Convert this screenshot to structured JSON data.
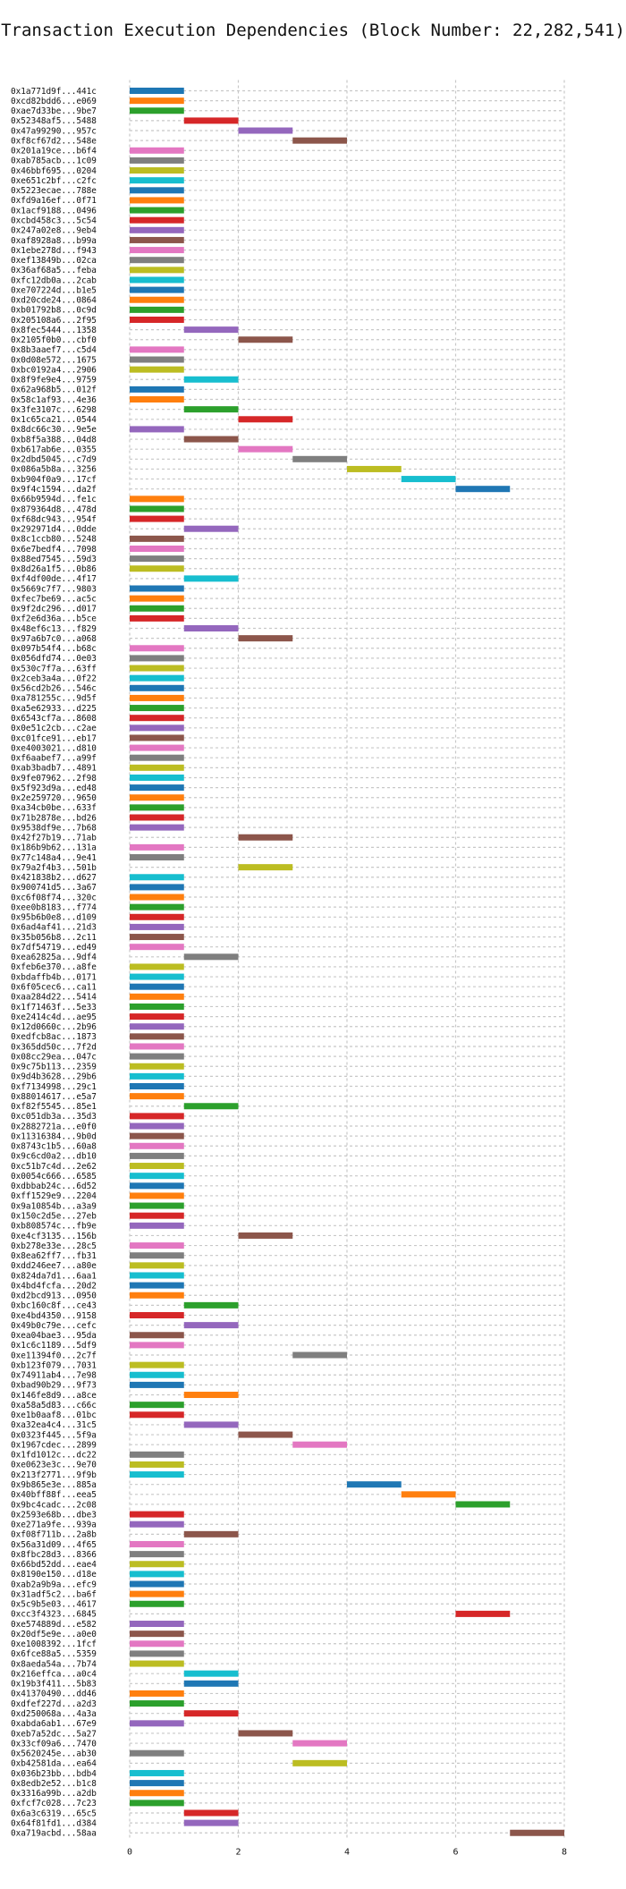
{
  "chart_data": {
    "type": "gantt",
    "title": "Transaction Execution Dependencies (Block Number: 22,282,541)",
    "xlabel": "",
    "ylabel": "",
    "xlim": [
      0,
      8
    ],
    "xticks": [
      0,
      2,
      4,
      6,
      8
    ],
    "grid": true,
    "palette": [
      "#1f77b4",
      "#ff7f0e",
      "#2ca02c",
      "#d62728",
      "#9467bd",
      "#8c564b",
      "#e377c2",
      "#7f7f7f",
      "#bcbd22",
      "#17becf"
    ],
    "tasks": [
      [
        "0x1a771d9f...441c",
        0,
        1
      ],
      [
        "0xcd82bdd6...e069",
        0,
        1
      ],
      [
        "0xae7d33be...9be7",
        0,
        1
      ],
      [
        "0x52348af5...5488",
        1,
        2
      ],
      [
        "0x47a99290...957c",
        2,
        3
      ],
      [
        "0xf8cf67d2...548e",
        3,
        4
      ],
      [
        "0x201a19ce...b6f4",
        0,
        1
      ],
      [
        "0xab785acb...1c09",
        0,
        1
      ],
      [
        "0x46bbf695...0204",
        0,
        1
      ],
      [
        "0xe651c2bf...c2fc",
        0,
        1
      ],
      [
        "0x5223ecae...788e",
        0,
        1
      ],
      [
        "0xfd9a16ef...0f71",
        0,
        1
      ],
      [
        "0x1acf9188...0496",
        0,
        1
      ],
      [
        "0xcbd458c3...5c54",
        0,
        1
      ],
      [
        "0x247a02e8...9eb4",
        0,
        1
      ],
      [
        "0xaf8928a8...b99a",
        0,
        1
      ],
      [
        "0x1ebe278d...f943",
        0,
        1
      ],
      [
        "0xef13849b...02ca",
        0,
        1
      ],
      [
        "0x36af68a5...feba",
        0,
        1
      ],
      [
        "0xfc12db0a...2cab",
        0,
        1
      ],
      [
        "0xe707224d...b1e5",
        0,
        1
      ],
      [
        "0xd20cde24...0864",
        0,
        1
      ],
      [
        "0xb01792b8...0c9d",
        0,
        1
      ],
      [
        "0x205108a6...2f95",
        0,
        1
      ],
      [
        "0x8fec5444...1358",
        1,
        2
      ],
      [
        "0x2105f0b0...cbf0",
        2,
        3
      ],
      [
        "0x8b3aaef7...c5d4",
        0,
        1
      ],
      [
        "0x0d08e572...1675",
        0,
        1
      ],
      [
        "0xbc0192a4...2906",
        0,
        1
      ],
      [
        "0x8f9fe9e4...9759",
        1,
        2
      ],
      [
        "0x62a968b5...012f",
        0,
        1
      ],
      [
        "0x58c1af93...4e36",
        0,
        1
      ],
      [
        "0x3fe3107c...6298",
        1,
        2
      ],
      [
        "0x1c65ca21...0544",
        2,
        3
      ],
      [
        "0x8dc66c30...9e5e",
        0,
        1
      ],
      [
        "0xb8f5a388...04d8",
        1,
        2
      ],
      [
        "0xb617ab6e...0355",
        2,
        3
      ],
      [
        "0x2dbd5045...c7d9",
        3,
        4
      ],
      [
        "0x086a5b8a...3256",
        4,
        5
      ],
      [
        "0xb904f0a9...17cf",
        5,
        6
      ],
      [
        "0x9f4c1594...da2f",
        6,
        7
      ],
      [
        "0x66b9594d...fe1c",
        0,
        1
      ],
      [
        "0x879364d8...478d",
        0,
        1
      ],
      [
        "0xf68dc943...954f",
        0,
        1
      ],
      [
        "0x292971d4...0dde",
        1,
        2
      ],
      [
        "0x8c1ccb80...5248",
        0,
        1
      ],
      [
        "0x6e7bedf4...7098",
        0,
        1
      ],
      [
        "0x88ed7545...59d3",
        0,
        1
      ],
      [
        "0x8d26a1f5...0b86",
        0,
        1
      ],
      [
        "0xf4df00de...4f17",
        1,
        2
      ],
      [
        "0x5669c7f7...9803",
        0,
        1
      ],
      [
        "0xfec7be69...ac5c",
        0,
        1
      ],
      [
        "0x9f2dc296...d017",
        0,
        1
      ],
      [
        "0xf2e6d36a...b5ce",
        0,
        1
      ],
      [
        "0x48ef6c13...f829",
        1,
        2
      ],
      [
        "0x97a6b7c0...a068",
        2,
        3
      ],
      [
        "0x097b54f4...b68c",
        0,
        1
      ],
      [
        "0x056dfd74...0e03",
        0,
        1
      ],
      [
        "0x530c7f7a...63ff",
        0,
        1
      ],
      [
        "0x2ceb3a4a...0f22",
        0,
        1
      ],
      [
        "0x56cd2b26...546c",
        0,
        1
      ],
      [
        "0xa781255c...9d5f",
        0,
        1
      ],
      [
        "0xa5e62933...d225",
        0,
        1
      ],
      [
        "0x6543cf7a...8608",
        0,
        1
      ],
      [
        "0x0e51c2cb...c2ae",
        0,
        1
      ],
      [
        "0xc01fce91...eb17",
        0,
        1
      ],
      [
        "0xe4003021...d810",
        0,
        1
      ],
      [
        "0xf6aabef7...a99f",
        0,
        1
      ],
      [
        "0xab3badb7...4891",
        0,
        1
      ],
      [
        "0x9fe07962...2f98",
        0,
        1
      ],
      [
        "0x5f923d9a...ed48",
        0,
        1
      ],
      [
        "0x2e259720...9650",
        0,
        1
      ],
      [
        "0xa34cb0be...633f",
        0,
        1
      ],
      [
        "0x71b2878e...bd26",
        0,
        1
      ],
      [
        "0x9538df9e...7b68",
        0,
        1
      ],
      [
        "0x42f27b19...71ab",
        2,
        3
      ],
      [
        "0x186b9b62...131a",
        0,
        1
      ],
      [
        "0x77c148a4...9e41",
        0,
        1
      ],
      [
        "0x79a2f4b3...501b",
        2,
        3
      ],
      [
        "0x421838b2...d627",
        0,
        1
      ],
      [
        "0x900741d5...3a67",
        0,
        1
      ],
      [
        "0xc6f08f74...320c",
        0,
        1
      ],
      [
        "0xee0b8183...f774",
        0,
        1
      ],
      [
        "0x95b6b0e8...d109",
        0,
        1
      ],
      [
        "0x6ad4af41...21d3",
        0,
        1
      ],
      [
        "0x35b056b8...2c11",
        0,
        1
      ],
      [
        "0x7df54719...ed49",
        0,
        1
      ],
      [
        "0xea62825a...9df4",
        1,
        2
      ],
      [
        "0xfeb6e370...a8fe",
        0,
        1
      ],
      [
        "0xbdaffb4b...0171",
        0,
        1
      ],
      [
        "0x6f05cec6...ca11",
        0,
        1
      ],
      [
        "0xaa284d22...5414",
        0,
        1
      ],
      [
        "0x1f71463f...5e33",
        0,
        1
      ],
      [
        "0xe2414c4d...ae95",
        0,
        1
      ],
      [
        "0x12d0660c...2b96",
        0,
        1
      ],
      [
        "0xedfcb8ac...1873",
        0,
        1
      ],
      [
        "0x365dd50c...7f2d",
        0,
        1
      ],
      [
        "0x08cc29ea...047c",
        0,
        1
      ],
      [
        "0x9c75b113...2359",
        0,
        1
      ],
      [
        "0x9d4b3628...29b6",
        0,
        1
      ],
      [
        "0xf7134998...29c1",
        0,
        1
      ],
      [
        "0x88014617...e5a7",
        0,
        1
      ],
      [
        "0xf82f5545...85e1",
        1,
        2
      ],
      [
        "0xc051db3a...35d3",
        0,
        1
      ],
      [
        "0x2882721a...e0f0",
        0,
        1
      ],
      [
        "0x11316384...9b0d",
        0,
        1
      ],
      [
        "0x8743c1b5...60a8",
        0,
        1
      ],
      [
        "0x9c6cd0a2...db10",
        0,
        1
      ],
      [
        "0xc51b7c4d...2e62",
        0,
        1
      ],
      [
        "0x0054c666...6585",
        0,
        1
      ],
      [
        "0xdbbab24c...6d52",
        0,
        1
      ],
      [
        "0xff1529e9...2204",
        0,
        1
      ],
      [
        "0x9a10854b...a3a9",
        0,
        1
      ],
      [
        "0x150c2d5e...27eb",
        0,
        1
      ],
      [
        "0xb808574c...fb9e",
        0,
        1
      ],
      [
        "0xe4cf3135...156b",
        2,
        3
      ],
      [
        "0xb278e33e...28c5",
        0,
        1
      ],
      [
        "0x8ea62ff7...fb31",
        0,
        1
      ],
      [
        "0xdd246ee7...a80e",
        0,
        1
      ],
      [
        "0x824da7d1...6aa1",
        0,
        1
      ],
      [
        "0x4bd4fcfa...20d2",
        0,
        1
      ],
      [
        "0xd2bcd913...0950",
        0,
        1
      ],
      [
        "0xbc160c8f...ce43",
        1,
        2
      ],
      [
        "0xe4bd4350...9158",
        0,
        1
      ],
      [
        "0x49b0c79e...cefc",
        1,
        2
      ],
      [
        "0xea04bae3...95da",
        0,
        1
      ],
      [
        "0x1c6c1189...5df9",
        0,
        1
      ],
      [
        "0xe11394f0...2c7f",
        3,
        4
      ],
      [
        "0xb123f079...7031",
        0,
        1
      ],
      [
        "0x74911ab4...7e98",
        0,
        1
      ],
      [
        "0xbad90b29...9f73",
        0,
        1
      ],
      [
        "0x146fe8d9...a8ce",
        1,
        2
      ],
      [
        "0xa58a5d83...c66c",
        0,
        1
      ],
      [
        "0xe1b0aaf8...01bc",
        0,
        1
      ],
      [
        "0xa32ea4c4...31c5",
        1,
        2
      ],
      [
        "0x0323f445...5f9a",
        2,
        3
      ],
      [
        "0x1967cdec...2899",
        3,
        4
      ],
      [
        "0x1fd1012c...dc22",
        0,
        1
      ],
      [
        "0xe0623e3c...9e70",
        0,
        1
      ],
      [
        "0x213f2771...9f9b",
        0,
        1
      ],
      [
        "0x9b865e3e...885a",
        4,
        5
      ],
      [
        "0x40bff88f...eea5",
        5,
        6
      ],
      [
        "0x9bc4cadc...2c08",
        6,
        7
      ],
      [
        "0x2593e68b...dbe3",
        0,
        1
      ],
      [
        "0xe271a9fe...939a",
        0,
        1
      ],
      [
        "0xf08f711b...2a8b",
        1,
        2
      ],
      [
        "0x56a31d09...4f65",
        0,
        1
      ],
      [
        "0x8fbc28d3...8366",
        0,
        1
      ],
      [
        "0x66bd52dd...eae4",
        0,
        1
      ],
      [
        "0x8190e150...d18e",
        0,
        1
      ],
      [
        "0xab2a9b9a...efc9",
        0,
        1
      ],
      [
        "0x31adf5c2...ba6f",
        0,
        1
      ],
      [
        "0x5c9b5e03...4617",
        0,
        1
      ],
      [
        "0xcc3f4323...6845",
        6,
        7
      ],
      [
        "0xe574889d...e582",
        0,
        1
      ],
      [
        "0x20df5e9e...a0e0",
        0,
        1
      ],
      [
        "0xe1008392...1fcf",
        0,
        1
      ],
      [
        "0x6fce88a5...5359",
        0,
        1
      ],
      [
        "0x8aeda54a...7b74",
        0,
        1
      ],
      [
        "0x216effca...a0c4",
        1,
        2
      ],
      [
        "0x19b3f411...5b83",
        1,
        2
      ],
      [
        "0x41370490...dd46",
        0,
        1
      ],
      [
        "0xdfef227d...a2d3",
        0,
        1
      ],
      [
        "0xd250068a...4a3a",
        1,
        2
      ],
      [
        "0xabda6ab1...67e9",
        0,
        1
      ],
      [
        "0xeb7a52dc...5a27",
        2,
        3
      ],
      [
        "0x33cf09a6...7470",
        3,
        4
      ],
      [
        "0x5620245e...ab30",
        0,
        1
      ],
      [
        "0xb42581da...ea64",
        3,
        4
      ],
      [
        "0x036b23bb...bdb4",
        0,
        1
      ],
      [
        "0x8edb2e52...b1c8",
        0,
        1
      ],
      [
        "0x3316a99b...a2db",
        0,
        1
      ],
      [
        "0xfcf7c028...7c23",
        0,
        1
      ],
      [
        "0x6a3c6319...65c5",
        1,
        2
      ],
      [
        "0x64f81fd1...d384",
        1,
        2
      ],
      [
        "0xa719acbd...58aa",
        7,
        8
      ]
    ]
  }
}
